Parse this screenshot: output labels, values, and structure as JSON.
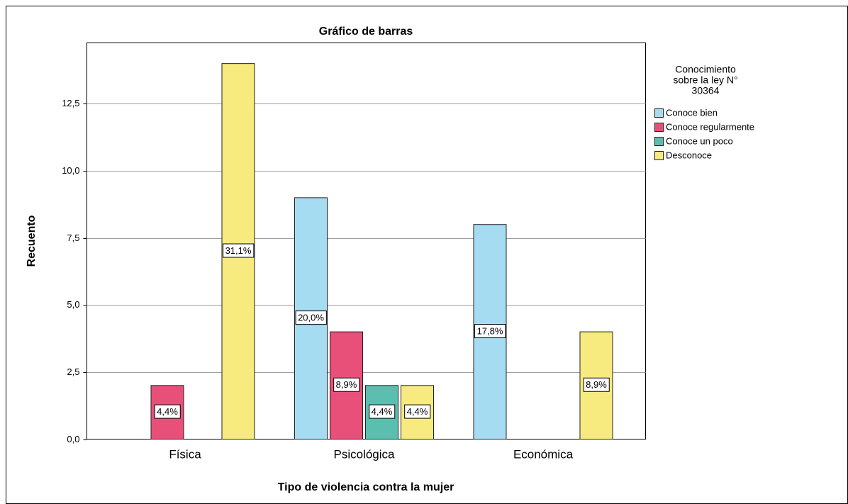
{
  "chart_data": {
    "type": "bar",
    "title": "Gráfico de barras",
    "x_label": "Tipo de violencia contra la mujer",
    "y_label": "Recuento",
    "categories": [
      "Física",
      "Psicológica",
      "Económica"
    ],
    "legend_title": [
      "Conocimiento",
      "sobre la ley N°",
      "30364"
    ],
    "legend": "right",
    "series": [
      {
        "name": "Conoce bien",
        "color": "#a6dcf2",
        "values": [
          0,
          9,
          8
        ],
        "bar_labels": [
          null,
          "20,0%",
          "17,8%"
        ]
      },
      {
        "name": "Conoce regularmente",
        "color": "#e8507a",
        "values": [
          2,
          4,
          0
        ],
        "bar_labels": [
          "4,4%",
          "8,9%",
          null
        ]
      },
      {
        "name": "Conoce un poco",
        "color": "#5bbfb0",
        "values": [
          0,
          2,
          0
        ],
        "bar_labels": [
          null,
          "4,4%",
          null
        ]
      },
      {
        "name": "Desconoce",
        "color": "#f7ea7e",
        "values": [
          14,
          2,
          4
        ],
        "bar_labels": [
          "31,1%",
          "4,4%",
          "8,9%"
        ]
      }
    ],
    "ylim": [
      0,
      14.77
    ],
    "yticks": [
      {
        "value": 0,
        "label": "0,0"
      },
      {
        "value": 2.5,
        "label": "2,5"
      },
      {
        "value": 5,
        "label": "5,0"
      },
      {
        "value": 7.5,
        "label": "7,5"
      },
      {
        "value": 10,
        "label": "10,0"
      },
      {
        "value": 12.5,
        "label": "12,5"
      }
    ],
    "grid": true
  }
}
